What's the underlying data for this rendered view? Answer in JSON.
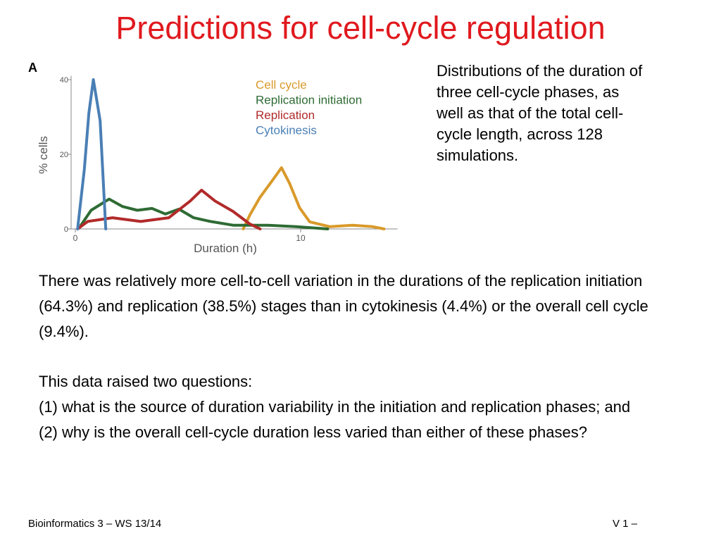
{
  "title": "Predictions for cell-cycle regulation",
  "panel_label": "A",
  "chart_data": {
    "type": "line",
    "x_label": "Duration (h)",
    "y_label": "% cells",
    "xlim": [
      0,
      14.3
    ],
    "ylim": [
      0,
      41
    ],
    "xticks": [
      0,
      10
    ],
    "yticks": [
      0,
      20,
      40
    ],
    "series": [
      {
        "name": "Cell cycle",
        "color": "#d99a2b",
        "x": [
          7.45,
          7.75,
          8.2,
          8.7,
          9.15,
          9.5,
          9.95,
          10.4,
          11.3,
          12.3,
          13.2,
          13.7
        ],
        "values": [
          0,
          3.8,
          8.5,
          12.6,
          16.4,
          12.3,
          5.7,
          1.9,
          0.6,
          1,
          0.6,
          0
        ]
      },
      {
        "name": "Replication initiation",
        "color": "#2e6b34",
        "x": [
          0.25,
          0.7,
          1.5,
          2.1,
          2.75,
          3.4,
          4,
          4.6,
          5.25,
          6,
          7,
          8.5,
          9.8,
          11.2
        ],
        "values": [
          1,
          5,
          8,
          6,
          5,
          5.5,
          4,
          5.3,
          3,
          2,
          1,
          1,
          0.6,
          0
        ]
      },
      {
        "name": "Replication",
        "color": "#b22a2a",
        "x": [
          0.1,
          0.55,
          1.65,
          2.9,
          4.15,
          5.1,
          5.6,
          6.2,
          7,
          7.75,
          8.2
        ],
        "values": [
          0,
          2,
          3,
          2,
          3,
          7.5,
          10.4,
          7.5,
          4.7,
          1.3,
          0
        ]
      },
      {
        "name": "Cytokinesis",
        "color": "#4a7fb5",
        "x": [
          0.1,
          0.4,
          0.6,
          0.8,
          1.1,
          1.35
        ],
        "values": [
          0,
          16,
          31,
          40,
          29,
          0
        ]
      }
    ]
  },
  "side_text": "Distributions of the duration of three cell-cycle phases, as well as that of the total cell-cycle length, across 128 simulations.",
  "paragraph1": "There was relatively more cell-to-cell variation in the durations of the replication initiation (64.3%) and replication (38.5%) stages than in cytokinesis (4.4%) or the overall cell cycle (9.4%).",
  "paragraph2": [
    "This data raised two questions:",
    "(1) what is the source of duration variability in the initiation and replication phases; and",
    "(2) why is the overall cell-cycle duration less varied than either of these phases?"
  ],
  "footer_left": "Bioinformatics 3 – WS 13/14",
  "footer_right": "V 1 –"
}
